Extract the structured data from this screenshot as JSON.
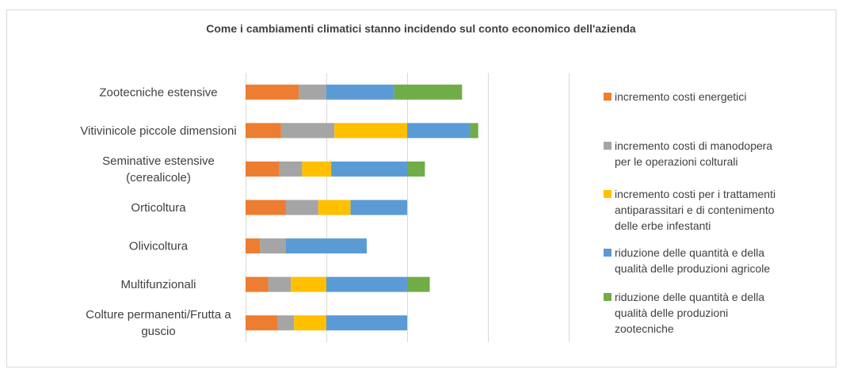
{
  "chart_data": {
    "type": "bar",
    "orientation": "horizontal",
    "stacked": true,
    "title": "Come i cambiamenti climatici stanno incidendo sul conto economico dell'azienda",
    "xlabel": "",
    "ylabel": "",
    "grid": true,
    "legend_position": "right",
    "categories": [
      {
        "lines": [
          "Zootecniche estensive"
        ]
      },
      {
        "lines": [
          "Vitivinicole piccole dimensioni"
        ]
      },
      {
        "lines": [
          "Seminative estensive",
          "(cerealicole)"
        ]
      },
      {
        "lines": [
          "Orticoltura"
        ]
      },
      {
        "lines": [
          "Olivicoltura"
        ]
      },
      {
        "lines": [
          "Multifunzionali"
        ]
      },
      {
        "lines": [
          "Colture permanenti/Frutta a",
          "guscio"
        ]
      }
    ],
    "series": [
      {
        "name": "incremento costi energetici",
        "legend_lines": [
          "incremento costi energetici"
        ],
        "color": "#ed7d31",
        "values": [
          33,
          22,
          21,
          25,
          9,
          14,
          20
        ]
      },
      {
        "name": "incremento costi di manodopera per le operazioni colturali",
        "legend_lines": [
          "incremento costi di manodopera",
          "per le operazioni colturali"
        ],
        "color": "#a5a5a5",
        "values": [
          17,
          33,
          14,
          20,
          16,
          14,
          10
        ]
      },
      {
        "name": "incremento costi per i trattamenti antiparassitari e di contenimento delle erbe infestanti",
        "legend_lines": [
          "incremento costi per i trattamenti",
          "antiparassitari e di contenimento",
          "delle erbe infestanti"
        ],
        "color": "#ffc000",
        "values": [
          0,
          45,
          18,
          20,
          0,
          22,
          20
        ]
      },
      {
        "name": "riduzione delle quantità e della qualità delle produzioni agricole",
        "legend_lines": [
          "riduzione delle quantità e della",
          "qualità delle produzioni agricole"
        ],
        "color": "#5b9bd5",
        "values": [
          42,
          39,
          47,
          35,
          50,
          50,
          50
        ]
      },
      {
        "name": "riduzione delle quantità e della qualità delle produzioni zootecniche",
        "legend_lines": [
          "riduzione delle quantità e della",
          "qualità delle produzioni",
          "zootecniche"
        ],
        "color": "#70ad47",
        "values": [
          42,
          5,
          11,
          0,
          0,
          14,
          0
        ]
      }
    ],
    "xlim": [
      0,
      200
    ],
    "x_gridlines": [
      0,
      50,
      100,
      150,
      200
    ]
  }
}
